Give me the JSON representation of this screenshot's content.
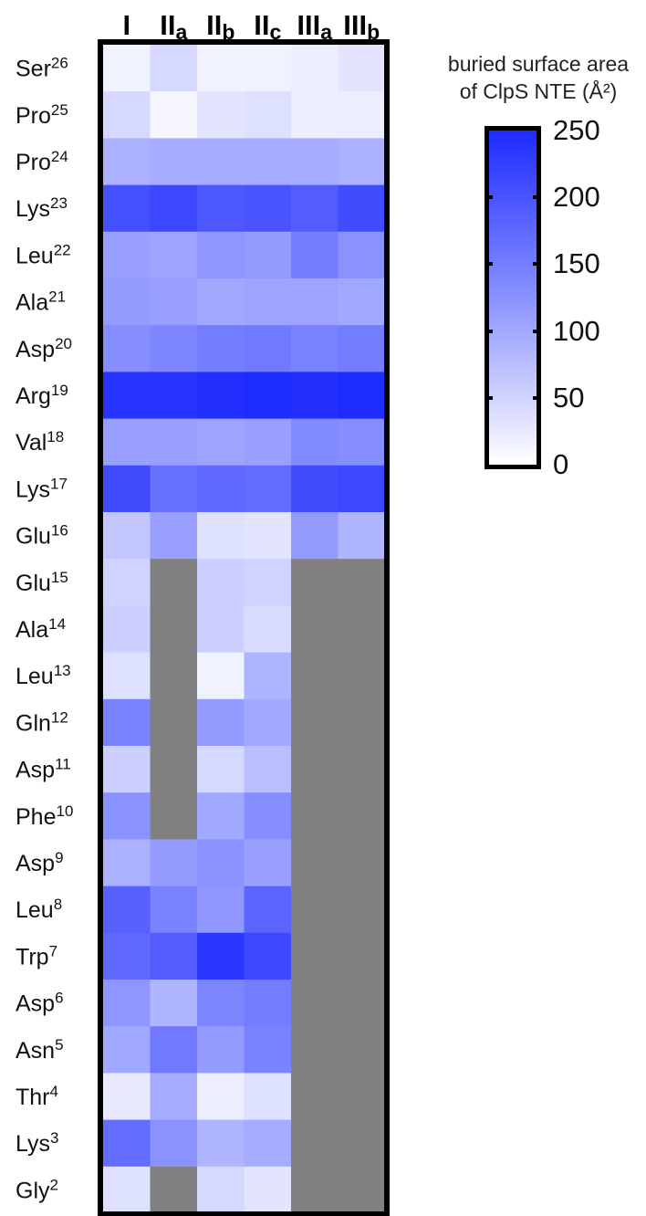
{
  "chart_data": {
    "type": "heatmap",
    "columns": [
      {
        "base": "I",
        "sub": ""
      },
      {
        "base": "II",
        "sub": "a"
      },
      {
        "base": "II",
        "sub": "b"
      },
      {
        "base": "II",
        "sub": "c"
      },
      {
        "base": "III",
        "sub": "a"
      },
      {
        "base": "III",
        "sub": "b"
      }
    ],
    "rows": [
      {
        "res": "Ser",
        "num": "26"
      },
      {
        "res": "Pro",
        "num": "25"
      },
      {
        "res": "Pro",
        "num": "24"
      },
      {
        "res": "Lys",
        "num": "23"
      },
      {
        "res": "Leu",
        "num": "22"
      },
      {
        "res": "Ala",
        "num": "21"
      },
      {
        "res": "Asp",
        "num": "20"
      },
      {
        "res": "Arg",
        "num": "19"
      },
      {
        "res": "Val",
        "num": "18"
      },
      {
        "res": "Lys",
        "num": "17"
      },
      {
        "res": "Glu",
        "num": "16"
      },
      {
        "res": "Glu",
        "num": "15"
      },
      {
        "res": "Ala",
        "num": "14"
      },
      {
        "res": "Leu",
        "num": "13"
      },
      {
        "res": "Gln",
        "num": "12"
      },
      {
        "res": "Asp",
        "num": "11"
      },
      {
        "res": "Phe",
        "num": "10"
      },
      {
        "res": "Asp",
        "num": "9"
      },
      {
        "res": "Leu",
        "num": "8"
      },
      {
        "res": "Trp",
        "num": "7"
      },
      {
        "res": "Asp",
        "num": "6"
      },
      {
        "res": "Asn",
        "num": "5"
      },
      {
        "res": "Thr",
        "num": "4"
      },
      {
        "res": "Lys",
        "num": "3"
      },
      {
        "res": "Gly",
        "num": "2"
      }
    ],
    "values": [
      [
        15,
        45,
        15,
        15,
        20,
        30
      ],
      [
        45,
        10,
        30,
        35,
        20,
        20
      ],
      [
        90,
        95,
        95,
        95,
        95,
        90
      ],
      [
        205,
        215,
        195,
        200,
        190,
        210
      ],
      [
        110,
        105,
        120,
        115,
        150,
        125
      ],
      [
        115,
        110,
        100,
        105,
        105,
        100
      ],
      [
        130,
        140,
        150,
        155,
        145,
        150
      ],
      [
        240,
        240,
        245,
        250,
        245,
        250
      ],
      [
        110,
        110,
        105,
        110,
        135,
        130
      ],
      [
        210,
        165,
        175,
        170,
        210,
        215
      ],
      [
        65,
        110,
        35,
        30,
        115,
        85
      ],
      [
        50,
        null,
        55,
        50,
        null,
        null
      ],
      [
        55,
        null,
        55,
        40,
        null,
        null
      ],
      [
        35,
        null,
        15,
        85,
        null,
        null
      ],
      [
        145,
        null,
        115,
        100,
        null,
        null
      ],
      [
        55,
        null,
        45,
        75,
        null,
        null
      ],
      [
        125,
        null,
        100,
        130,
        null,
        null
      ],
      [
        90,
        115,
        125,
        110,
        null,
        null
      ],
      [
        185,
        145,
        120,
        180,
        null,
        null
      ],
      [
        175,
        190,
        235,
        215,
        null,
        null
      ],
      [
        120,
        85,
        140,
        150,
        null,
        null
      ],
      [
        100,
        155,
        115,
        145,
        null,
        null
      ],
      [
        25,
        95,
        20,
        35,
        null,
        null
      ],
      [
        170,
        125,
        85,
        95,
        null,
        null
      ],
      [
        35,
        null,
        45,
        30,
        null,
        null
      ]
    ],
    "missing_color": "#808080",
    "colormap": {
      "min_color": "#ffffff",
      "mid_color": "#8a92ff",
      "max_color": "#1e2bff"
    },
    "colorbar": {
      "title_line1": "buried surface area",
      "title_line2": "of ClpS NTE (Å²)",
      "range": [
        0,
        250
      ],
      "ticks": [
        "250",
        "200",
        "150",
        "100",
        "50",
        "0"
      ]
    }
  }
}
